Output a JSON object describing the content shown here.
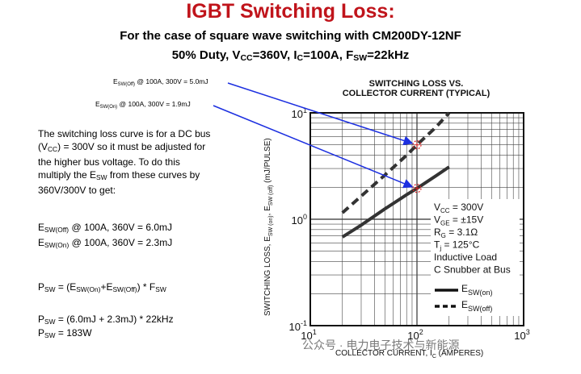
{
  "header": {
    "title": "IGBT Switching Loss:",
    "subtitle_line1": "For the case of square wave switching with CM200DY-12NF",
    "subtitle_line2_prefix": "50% Duty, V",
    "subtitle_line2_vsub": "CC",
    "subtitle_line2_mid": "=360V, I",
    "subtitle_line2_isub": "C",
    "subtitle_line2_mid2": "=100A, F",
    "subtitle_line2_fsub": "SW",
    "subtitle_line2_end": "=22kHz"
  },
  "callouts": {
    "off_prefix": "E",
    "off_sub": "SW(Off)",
    "off_text": " @ 100A, 300V = 5.0mJ",
    "on_prefix": "E",
    "on_sub": "SW(On)",
    "on_text": " @ 100A, 300V = 1.9mJ"
  },
  "explanation": {
    "line1": "The switching loss curve is for a DC bus",
    "line2a": "(V",
    "line2sub": "CC",
    "line2b": ") = 300V so it must be adjusted for",
    "line3": "the higher bus voltage.  To do this",
    "line4a": "multiply the E",
    "line4sub": "SW",
    "line4b": " from these curves by",
    "line5": "360V/300V to get:"
  },
  "results": {
    "off_prefix": "E",
    "off_sub": "SW(Off)",
    "off_text": " @ 100A, 360V = 6.0mJ",
    "on_prefix": "E",
    "on_sub": "SW(On)",
    "on_text": " @ 100A, 360V = 2.3mJ"
  },
  "formula": {
    "f1_a": "P",
    "f1_sub1": "SW",
    "f1_b": " = (E",
    "f1_sub2": "SW(On)",
    "f1_c": "+E",
    "f1_sub3": "SW(Off)",
    "f1_d": ") * F",
    "f1_sub4": "SW",
    "f2_a": "P",
    "f2_sub1": "SW",
    "f2_b": " = (6.0mJ + 2.3mJ) * 22kHz",
    "f3_a": "P",
    "f3_sub1": "SW",
    "f3_b": " = 183W"
  },
  "watermark": "公众号 · 电力电子技术与新能源",
  "colors": {
    "title_red": "#c0141b",
    "arrow_blue": "#1c2fe0",
    "marker_red": "#e02020"
  },
  "chart_data": {
    "type": "line",
    "title_line1": "SWITCHING LOSS VS.",
    "title_line2": "COLLECTOR CURRENT (TYPICAL)",
    "xlabel_main": "COLLECTOR CURRENT, I",
    "xlabel_sub": "C",
    "xlabel_unit": "  (AMPERES)",
    "ylabel_a": "SWITCHING LOSS, E",
    "ylabel_sub1": "SW (on)",
    "ylabel_b": ", E",
    "ylabel_sub2": "SW (off)",
    "ylabel_c": "  (mJ/PULSE)",
    "x_scale": "log",
    "y_scale": "log",
    "xlim": [
      10,
      1000
    ],
    "ylim": [
      0.1,
      10
    ],
    "x_ticks": [
      {
        "base": "10",
        "exp": "1"
      },
      {
        "base": "10",
        "exp": "2"
      },
      {
        "base": "10",
        "exp": "3"
      }
    ],
    "y_ticks": [
      {
        "base": "10",
        "exp": "1"
      },
      {
        "base": "10",
        "exp": "0"
      },
      {
        "base": "10",
        "exp": "-1"
      }
    ],
    "grid": true,
    "series": [
      {
        "name_main": "E",
        "name_sub": "SW(on)",
        "style": "solid",
        "x": [
          20,
          30,
          50,
          80,
          100,
          150,
          200
        ],
        "y": [
          0.68,
          0.88,
          1.25,
          1.7,
          1.95,
          2.55,
          3.1
        ]
      },
      {
        "name_main": "E",
        "name_sub": "SW(off)",
        "style": "dashed",
        "x": [
          20,
          30,
          50,
          80,
          100,
          150,
          200
        ],
        "y": [
          1.15,
          1.65,
          2.6,
          4.0,
          5.0,
          7.3,
          10.0
        ]
      }
    ],
    "markers": [
      {
        "x": 100,
        "y": 5.0
      },
      {
        "x": 100,
        "y": 1.95
      }
    ],
    "conditions": [
      {
        "a": "V",
        "sub": "CC",
        "b": " = 300V"
      },
      {
        "a": "V",
        "sub": "GE",
        "b": " = ±15V"
      },
      {
        "a": "R",
        "sub": "G",
        "b": " = 3.1Ω"
      },
      {
        "a": "T",
        "sub": "j",
        "b": " = 125°C"
      },
      {
        "a": "Inductive Load",
        "sub": "",
        "b": ""
      },
      {
        "a": "C Snubber at Bus",
        "sub": "",
        "b": ""
      }
    ]
  }
}
